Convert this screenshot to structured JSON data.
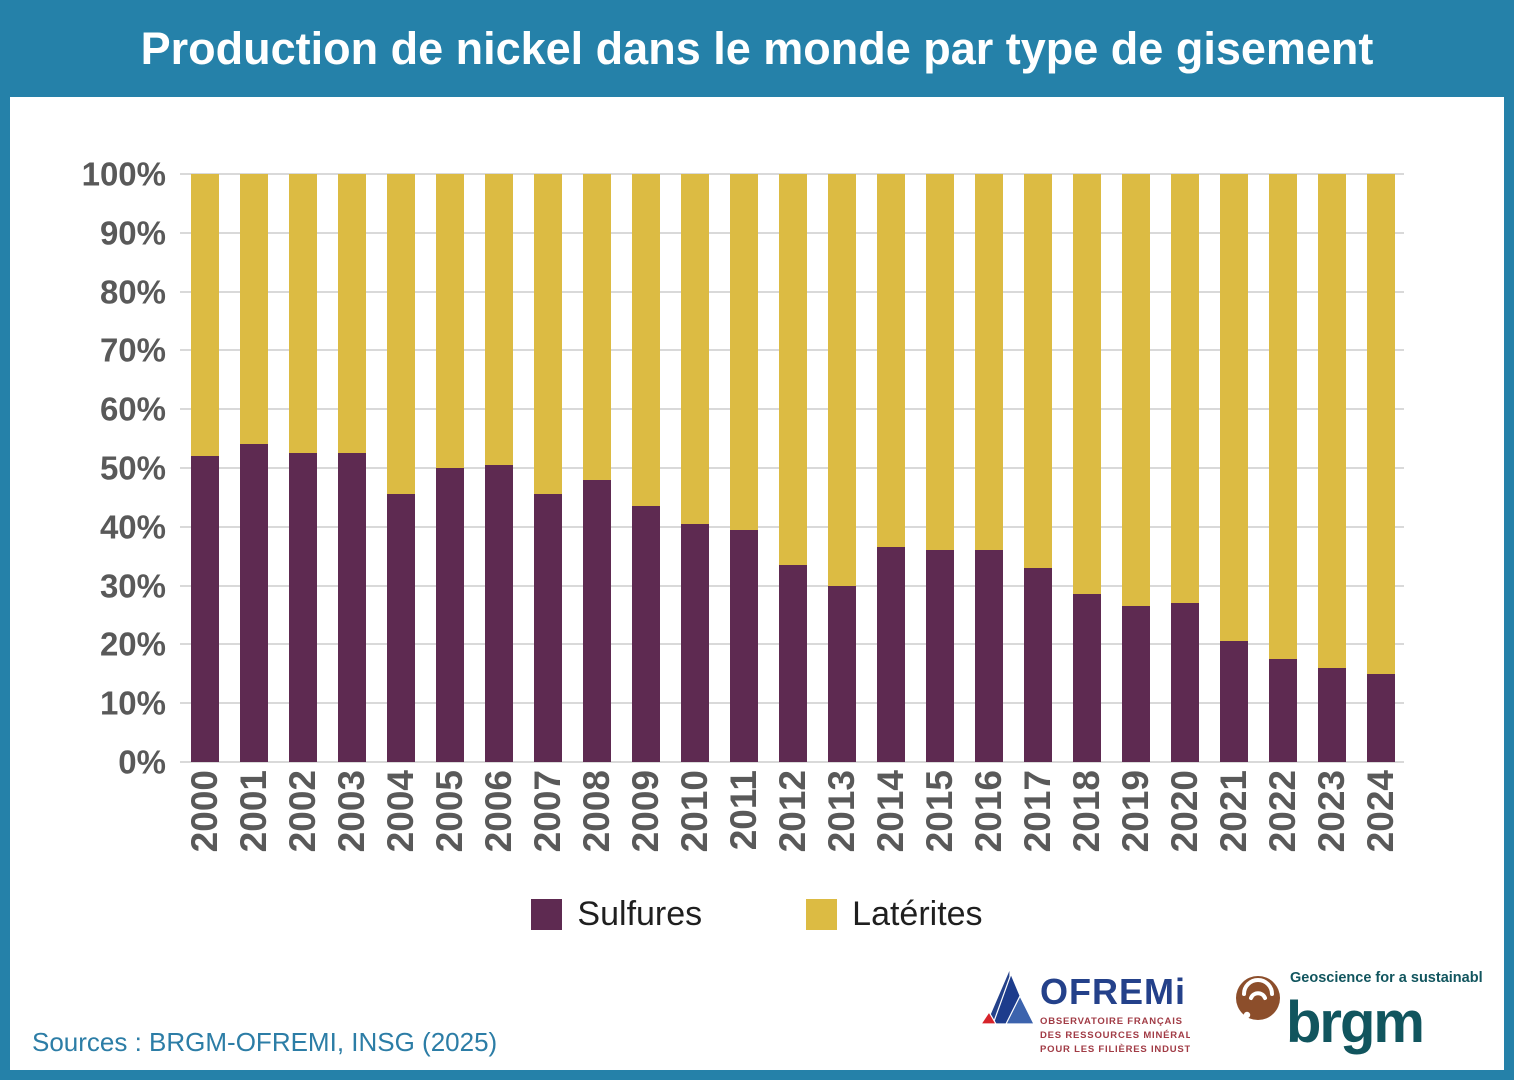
{
  "header": {
    "title": "Production de nickel dans le monde par type de gisement"
  },
  "chart_data": {
    "type": "bar",
    "stacked": true,
    "percent": true,
    "title": "Production de nickel dans le monde par type de gisement",
    "categories": [
      "2000",
      "2001",
      "2002",
      "2003",
      "2004",
      "2005",
      "2006",
      "2007",
      "2008",
      "2009",
      "2010",
      "2011",
      "2012",
      "2013",
      "2014",
      "2015",
      "2016",
      "2017",
      "2018",
      "2019",
      "2020",
      "2021",
      "2022",
      "2023",
      "2024"
    ],
    "series": [
      {
        "name": "Sulfures",
        "key": "sulfures",
        "color": "#5E2A51",
        "values": [
          52,
          54,
          52.5,
          52.5,
          45.5,
          50,
          50.5,
          45.5,
          48,
          43.5,
          40.5,
          39.5,
          33.5,
          30,
          36.5,
          36,
          36,
          33,
          28.5,
          26.5,
          27,
          20.5,
          17.5,
          16,
          15
        ]
      },
      {
        "name": "Latérites",
        "key": "laterites",
        "color": "#DCBB43",
        "values": [
          48,
          46,
          47.5,
          47.5,
          54.5,
          50,
          49.5,
          54.5,
          52,
          56.5,
          59.5,
          60.5,
          66.5,
          70,
          63.5,
          64,
          64,
          67,
          71.5,
          73.5,
          73,
          79.5,
          82.5,
          84,
          85
        ]
      }
    ],
    "xlabel": "",
    "ylabel": "",
    "ylim": [
      0,
      100
    ],
    "yticks": [
      "0%",
      "10%",
      "20%",
      "30%",
      "40%",
      "50%",
      "60%",
      "70%",
      "80%",
      "90%",
      "100%"
    ],
    "grid": true,
    "legend_position": "bottom"
  },
  "footer": {
    "sources": "Sources : BRGM-OFREMI, INSG (2025)"
  },
  "logos": {
    "ofremi": {
      "name": "OFREMi",
      "subtitle_lines": [
        "OBSERVATOIRE FRANÇAIS",
        "DES RESSOURCES MINÉRALES",
        "POUR LES FILIÈRES INDUSTRIELLES"
      ]
    },
    "brgm": {
      "name": "brgm",
      "tagline": "Geoscience for a sustainable Earth"
    }
  },
  "colors": {
    "header_blue": "#2581A9",
    "frame_blue": "#2581A9",
    "sulfures_purple": "#5E2A51",
    "laterites_yellow": "#DCBB43",
    "gridline_gray": "#D9D9D9",
    "axis_text_gray": "#595959",
    "legend_text": "#1F1F1F",
    "sources_text": "#2C7DA6",
    "ofremi_navy": "#24418A",
    "ofremi_subtext_red": "#A13B45",
    "ofremi_icon_red": "#D6232A",
    "brgm_teal": "#11555E",
    "brgm_brown": "#8C4E2B"
  }
}
